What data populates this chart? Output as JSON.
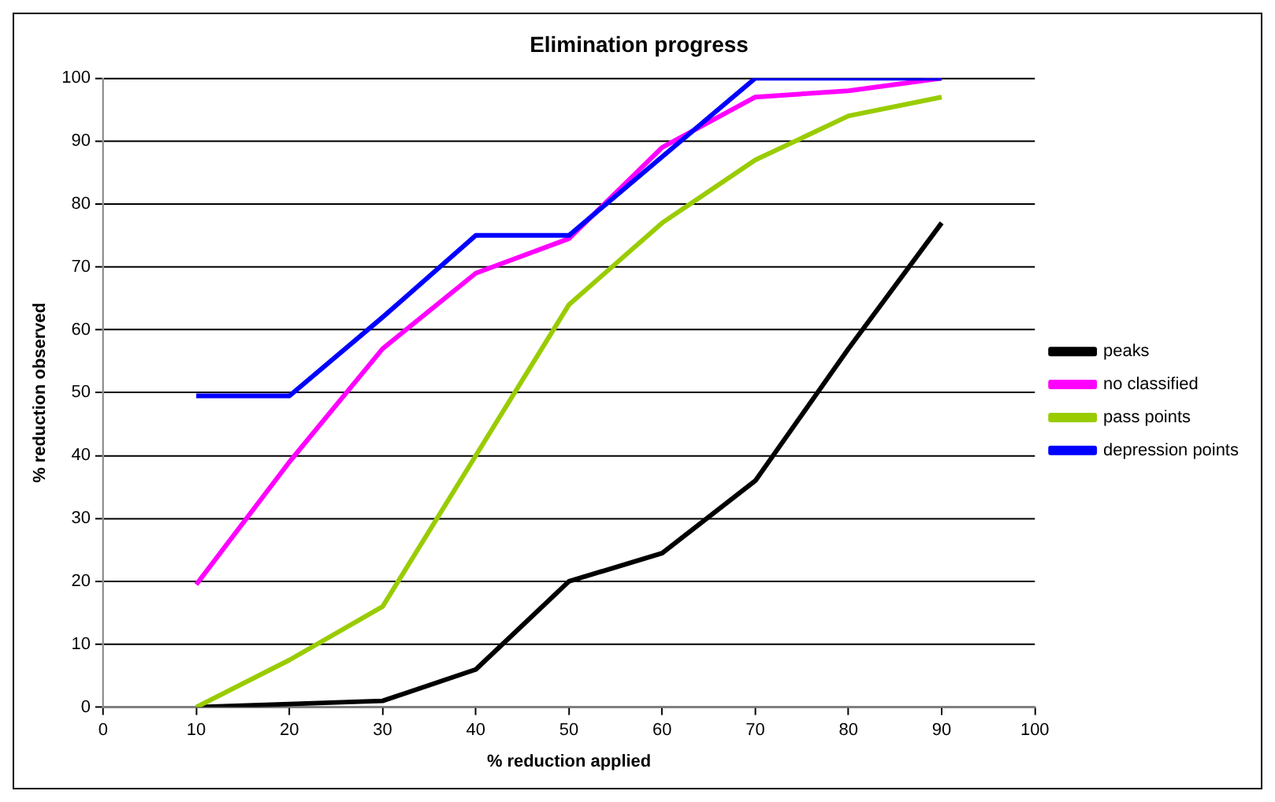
{
  "chart_data": {
    "type": "line",
    "title": "Elimination progress",
    "xlabel": "% reduction applied",
    "ylabel": "% reduction observed",
    "x": [
      10,
      20,
      30,
      40,
      50,
      60,
      70,
      80,
      90
    ],
    "series": [
      {
        "name": "peaks",
        "color": "#000000",
        "values": [
          0,
          0.5,
          1,
          6,
          20,
          24.5,
          36,
          57,
          77
        ]
      },
      {
        "name": "no classified",
        "color": "#ff00ff",
        "values": [
          19.5,
          39,
          57,
          69,
          74.5,
          89,
          97,
          98,
          100
        ]
      },
      {
        "name": "pass points",
        "color": "#99cc00",
        "values": [
          0,
          7.5,
          16,
          40,
          64,
          77,
          87,
          94,
          97
        ]
      },
      {
        "name": "depression points",
        "color": "#0000ff",
        "values": [
          49.5,
          49.5,
          62,
          75,
          75,
          87.5,
          100,
          100,
          100
        ]
      }
    ],
    "xlim": [
      0,
      100
    ],
    "xticks": [
      0,
      10,
      20,
      30,
      40,
      50,
      60,
      70,
      80,
      90,
      100
    ],
    "ylim": [
      0,
      100
    ],
    "yticks": [
      0,
      10,
      20,
      30,
      40,
      50,
      60,
      70,
      80,
      90,
      100
    ],
    "grid": "y",
    "legend": "right",
    "marker": "none",
    "line_style": "solid"
  }
}
